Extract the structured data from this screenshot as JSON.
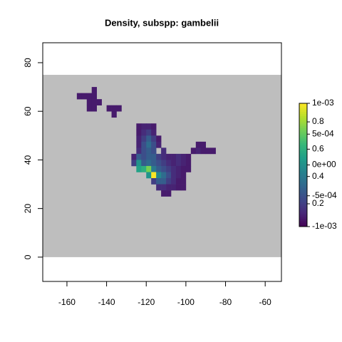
{
  "chart_data": {
    "type": "raster",
    "title": "Density, subspp: gambelii",
    "xlim": [
      -172.2,
      -51.8
    ],
    "ylim": [
      -10,
      88.2
    ],
    "xticks": [
      -160,
      -140,
      -120,
      -100,
      -80,
      -60
    ],
    "yticks": [
      0,
      20,
      40,
      60,
      80
    ],
    "na_region_ylim": [
      0,
      75
    ],
    "na_color": "#bebebe",
    "colormap": "viridis",
    "zlim": [
      -0.001,
      0.001
    ],
    "zticks": [
      {
        "value": 0.001,
        "label": "1e-03"
      },
      {
        "value": 0.0005,
        "label": "5e-04"
      },
      {
        "value": 0,
        "label": "0e+00"
      },
      {
        "value": -0.0005,
        "label": "-5e-04"
      },
      {
        "value": -0.001,
        "label": "-1e-03"
      }
    ],
    "z2lim": [
      0.033,
      0.936
    ],
    "z2ticks": [
      0.2,
      0.4,
      0.6,
      0.8
    ],
    "cell_x": [
      -147.5,
      -155,
      -152.5,
      -150,
      -147.5,
      -150,
      -147.5,
      -145,
      -150,
      -147.5,
      -140,
      -137.5,
      -135,
      -137.5,
      -125,
      -122.5,
      -120,
      -117.5,
      -125,
      -122.5,
      -120,
      -117.5,
      -125,
      -122.5,
      -120,
      -117.5,
      -115,
      -125,
      -122.5,
      -120,
      -117.5,
      -115,
      -95,
      -92.5,
      -125,
      -122.5,
      -120,
      -117.5,
      -112.5,
      -97.5,
      -95,
      -92.5,
      -90,
      -87.5,
      -127.5,
      -125,
      -122.5,
      -120,
      -117.5,
      -115,
      -112.5,
      -110,
      -107.5,
      -105,
      -102.5,
      -100,
      -127.5,
      -125,
      -122.5,
      -120,
      -117.5,
      -115,
      -112.5,
      -110,
      -107.5,
      -105,
      -102.5,
      -100,
      -125,
      -122.5,
      -120,
      -117.5,
      -115,
      -112.5,
      -110,
      -107.5,
      -105,
      -102.5,
      -100,
      -120,
      -117.5,
      -115,
      -112.5,
      -110,
      -107.5,
      -105,
      -102.5,
      -117.5,
      -115,
      -112.5,
      -110,
      -107.5,
      -105,
      -102.5,
      -115,
      -112.5,
      -110,
      -107.5,
      -105,
      -102.5,
      -112.5,
      -110
    ],
    "cell_y": [
      67.5,
      65,
      65,
      65,
      65,
      62.5,
      62.5,
      62.5,
      60,
      60,
      60,
      60,
      60,
      57.5,
      52.5,
      52.5,
      52.5,
      52.5,
      50,
      50,
      50,
      50,
      47.5,
      47.5,
      47.5,
      47.5,
      47.5,
      45,
      45,
      45,
      45,
      45,
      45,
      45,
      42.5,
      42.5,
      42.5,
      42.5,
      42.5,
      42.5,
      42.5,
      42.5,
      42.5,
      42.5,
      40,
      40,
      40,
      40,
      40,
      40,
      40,
      40,
      40,
      40,
      40,
      40,
      37.5,
      37.5,
      37.5,
      37.5,
      37.5,
      37.5,
      37.5,
      37.5,
      37.5,
      37.5,
      37.5,
      37.5,
      35,
      35,
      35,
      35,
      35,
      35,
      35,
      35,
      35,
      35,
      35,
      32.5,
      32.5,
      32.5,
      32.5,
      32.5,
      32.5,
      32.5,
      32.5,
      30,
      30,
      30,
      30,
      30,
      30,
      30,
      27.5,
      27.5,
      27.5,
      27.5,
      27.5,
      27.5,
      25,
      25
    ],
    "values": [
      0.1,
      0.1,
      0.1,
      0.1,
      0.1,
      0.1,
      0.1,
      0.1,
      0.1,
      0.1,
      0.1,
      0.1,
      0.1,
      0.1,
      0.1,
      0.12,
      0.12,
      0.1,
      0.1,
      0.15,
      0.2,
      0.12,
      0.12,
      0.2,
      0.3,
      0.2,
      0.1,
      0.12,
      0.25,
      0.35,
      0.25,
      0.12,
      0.1,
      0.1,
      0.15,
      0.25,
      0.3,
      0.25,
      0.15,
      0.1,
      0.12,
      0.1,
      0.1,
      0.1,
      0.12,
      0.3,
      0.25,
      0.3,
      0.3,
      0.2,
      0.15,
      0.12,
      0.12,
      0.15,
      0.12,
      0.1,
      0.2,
      0.5,
      0.3,
      0.35,
      0.3,
      0.25,
      0.2,
      0.15,
      0.12,
      0.15,
      0.12,
      0.1,
      0.55,
      0.6,
      0.75,
      0.4,
      0.3,
      0.25,
      0.2,
      0.15,
      0.12,
      0.1,
      0.1,
      0.5,
      0.94,
      0.45,
      0.35,
      0.25,
      0.15,
      0.12,
      0.1,
      0.2,
      0.3,
      0.3,
      0.2,
      0.15,
      0.1,
      0.1,
      0.15,
      0.15,
      0.12,
      0.12,
      0.1,
      0.1,
      0.1,
      0.1
    ]
  }
}
